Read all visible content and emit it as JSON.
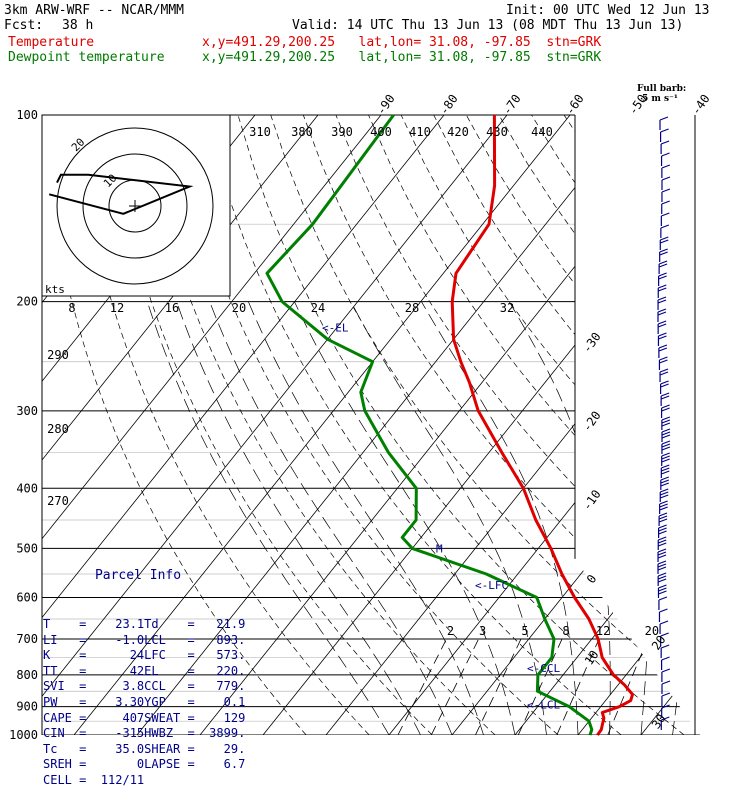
{
  "header": {
    "model": "3km ARW-WRF -- NCAR/MMM",
    "init": "Init: 00 UTC Wed 12 Jun 13",
    "fcst_label": "Fcst:",
    "fcst_value": "38 h",
    "valid": "Valid: 14 UTC Thu 13 Jun 13 (08 MDT Thu 13 Jun 13)",
    "temp_label": "Temperature",
    "temp_info": "x,y=491.29,200.25   lat,lon= 31.08, -97.85  stn=GRK",
    "dew_label": "Dewpoint temperature",
    "dew_info": "x,y=491.29,200.25   lat,lon= 31.08, -97.85  stn=GRK"
  },
  "colors": {
    "temperature": "#e00000",
    "dewpoint": "#008000",
    "barbs": "#00008b",
    "grid": "#000000"
  },
  "barb_legend": {
    "line1": "Full barb:",
    "line2": "5 m s⁻¹"
  },
  "parcel_info": {
    "title": "Parcel Info",
    "rows": [
      [
        "T",
        "=",
        "23.1",
        "Td",
        "=",
        "21.9"
      ],
      [
        "LI",
        "=",
        "-1.0",
        "LCL",
        "=",
        "893."
      ],
      [
        "K",
        "=",
        "24",
        "LFC",
        "=",
        "573."
      ],
      [
        "TT",
        "=",
        "42",
        "EL",
        "=",
        "220."
      ],
      [
        "SVI",
        "=",
        "3.8",
        "CCL",
        "=",
        "779."
      ],
      [
        "PW",
        "=",
        "3.30",
        "YGP",
        "=",
        "0.1"
      ],
      [
        "CAPE",
        "=",
        "407",
        "SWEAT",
        "=",
        "129"
      ],
      [
        "CIN",
        "=",
        "-315",
        "HWBZ",
        "=",
        "3899."
      ],
      [
        "Tc",
        "=",
        "35.0",
        "SHEAR",
        "=",
        "29."
      ],
      [
        "SREH",
        "=",
        "0",
        "LAPSE",
        "=",
        "6.7"
      ],
      [
        "CELL",
        "=",
        "112/11",
        "",
        "",
        ""
      ]
    ]
  },
  "chart_data": {
    "type": "line",
    "title": "",
    "pressure_levels": [
      100,
      200,
      300,
      400,
      500,
      600,
      700,
      800,
      900,
      1000
    ],
    "pressure_gridlines": [
      150,
      250,
      350,
      450,
      550,
      650,
      750,
      850,
      950
    ],
    "isotherm_labels": [
      "-90",
      "-80",
      "-70",
      "-60",
      "-50",
      "-40",
      "-30",
      "-20",
      "-10",
      "0",
      "10",
      "20",
      "30",
      "40"
    ],
    "isotherm_values": [
      -90,
      -80,
      -70,
      -60,
      -50,
      -40,
      -30,
      -20,
      -10,
      0,
      10,
      20,
      30,
      40
    ],
    "theta_labels": [
      "310",
      "380",
      "390",
      "400",
      "410",
      "420",
      "430",
      "440"
    ],
    "mixing_ratio_labels": [
      "2",
      "3",
      "5",
      "8",
      "12",
      "20"
    ],
    "mixing_ratio_values": [
      2,
      3,
      5,
      8,
      12,
      20
    ],
    "thetae_labels_top": [
      "8",
      "12",
      "16",
      "20",
      "24",
      "28",
      "32"
    ],
    "thetae_labels_left": [
      "290",
      "280",
      "270"
    ],
    "annotations": [
      "EL",
      "LFC",
      "CCL",
      "LCL",
      "M"
    ],
    "annotation_pressures": [
      220,
      573,
      779,
      893,
      500
    ],
    "series": [
      {
        "name": "Temperature",
        "color": "#e00000",
        "points": [
          [
            100,
            -72
          ],
          [
            130,
            -63
          ],
          [
            150,
            -59
          ],
          [
            180,
            -58
          ],
          [
            200,
            -55
          ],
          [
            230,
            -50
          ],
          [
            250,
            -46
          ],
          [
            270,
            -42
          ],
          [
            300,
            -37
          ],
          [
            350,
            -28
          ],
          [
            400,
            -20
          ],
          [
            450,
            -14
          ],
          [
            500,
            -8
          ],
          [
            550,
            -3
          ],
          [
            600,
            2
          ],
          [
            650,
            7
          ],
          [
            700,
            11
          ],
          [
            750,
            14
          ],
          [
            800,
            18
          ],
          [
            830,
            21
          ],
          [
            860,
            23.5
          ],
          [
            880,
            24
          ],
          [
            900,
            23
          ],
          [
            920,
            21
          ],
          [
            940,
            22
          ],
          [
            960,
            22.5
          ],
          [
            980,
            23
          ],
          [
            1000,
            23.1
          ]
        ]
      },
      {
        "name": "Dewpoint temperature",
        "color": "#008000",
        "points": [
          [
            100,
            -88
          ],
          [
            150,
            -87
          ],
          [
            180,
            -88
          ],
          [
            200,
            -82
          ],
          [
            230,
            -70
          ],
          [
            250,
            -60
          ],
          [
            280,
            -58
          ],
          [
            300,
            -55
          ],
          [
            350,
            -46
          ],
          [
            400,
            -37
          ],
          [
            450,
            -33
          ],
          [
            480,
            -33
          ],
          [
            500,
            -30
          ],
          [
            550,
            -15
          ],
          [
            600,
            -4
          ],
          [
            650,
            0
          ],
          [
            700,
            4
          ],
          [
            750,
            6
          ],
          [
            800,
            6
          ],
          [
            850,
            8
          ],
          [
            900,
            15
          ],
          [
            950,
            20
          ],
          [
            980,
            21.5
          ],
          [
            1000,
            21.9
          ]
        ]
      }
    ],
    "hodograph": {
      "ring_labels": [
        "10",
        "20"
      ],
      "speed_unit": "kts",
      "points": [
        [
          -22,
          3
        ],
        [
          -3,
          -2
        ],
        [
          14,
          5
        ],
        [
          -12,
          8
        ],
        [
          -19,
          8
        ],
        [
          -20,
          6
        ]
      ]
    }
  }
}
